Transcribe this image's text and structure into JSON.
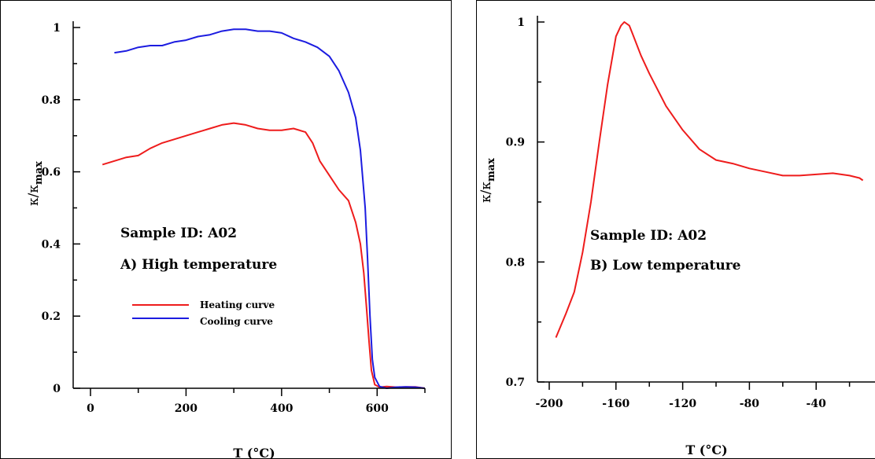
{
  "chart_data": [
    {
      "type": "line",
      "annotations": [
        "Sample ID: A02",
        "A) High temperature"
      ],
      "xlabel": "T (°C)",
      "ylabel": "κ/κmax",
      "ylabel_main": "κ/κ",
      "ylabel_sub": "max",
      "xlim": [
        0,
        700
      ],
      "ylim": [
        0,
        1
      ],
      "x_ticks": [
        0,
        200,
        400,
        600
      ],
      "x_tick_labels": [
        "0",
        "200",
        "400",
        "600"
      ],
      "y_ticks": [
        0,
        0.2,
        0.4,
        0.6,
        0.8,
        1
      ],
      "y_tick_labels": [
        "0",
        "0.2",
        "0.4",
        "0.6",
        "0.8",
        "1"
      ],
      "grid": false,
      "legend_position": "lower-left",
      "series": [
        {
          "name": "Heating curve",
          "color": "#ee1c1c",
          "x": [
            25,
            50,
            75,
            100,
            125,
            150,
            175,
            200,
            225,
            250,
            275,
            300,
            325,
            350,
            375,
            400,
            425,
            450,
            465,
            480,
            500,
            520,
            540,
            555,
            565,
            572,
            578,
            583,
            588,
            595,
            605,
            620,
            640,
            660,
            680,
            700
          ],
          "y": [
            0.62,
            0.63,
            0.64,
            0.645,
            0.665,
            0.68,
            0.69,
            0.7,
            0.71,
            0.72,
            0.73,
            0.735,
            0.73,
            0.72,
            0.715,
            0.715,
            0.72,
            0.71,
            0.68,
            0.63,
            0.59,
            0.55,
            0.52,
            0.46,
            0.4,
            0.32,
            0.22,
            0.13,
            0.05,
            0.01,
            0.003,
            0.005,
            0.003,
            0.004,
            0.004,
            0.0
          ]
        },
        {
          "name": "Cooling curve",
          "color": "#1c1ce0",
          "x": [
            50,
            75,
            100,
            125,
            150,
            175,
            200,
            225,
            250,
            275,
            300,
            325,
            350,
            375,
            400,
            425,
            450,
            475,
            500,
            520,
            540,
            555,
            565,
            575,
            580,
            585,
            590,
            595,
            605,
            620,
            640,
            660,
            680,
            700
          ],
          "y": [
            0.93,
            0.935,
            0.945,
            0.95,
            0.95,
            0.96,
            0.965,
            0.975,
            0.98,
            0.99,
            0.995,
            0.995,
            0.99,
            0.99,
            0.985,
            0.97,
            0.96,
            0.945,
            0.92,
            0.88,
            0.82,
            0.75,
            0.66,
            0.5,
            0.36,
            0.2,
            0.08,
            0.03,
            0.005,
            0.0,
            0.003,
            0.004,
            0.003,
            0.0
          ]
        }
      ]
    },
    {
      "type": "line",
      "annotations": [
        "Sample ID: A02",
        "B) Low temperature"
      ],
      "xlabel": "T (°C)",
      "ylabel": "κ/κmax",
      "ylabel_main": "κ/κ",
      "ylabel_sub": "max",
      "xlim": [
        -200,
        0
      ],
      "ylim": [
        0.7,
        1
      ],
      "x_ticks": [
        -200,
        -160,
        -120,
        -80,
        -40
      ],
      "x_tick_labels": [
        "-200",
        "-160",
        "-120",
        "-80",
        "-40"
      ],
      "y_ticks": [
        0.7,
        0.8,
        0.9,
        1
      ],
      "y_tick_labels": [
        "0.7",
        "0.8",
        "0.9",
        "1"
      ],
      "grid": false,
      "series": [
        {
          "color": "#ee1c1c",
          "x": [
            -196,
            -190,
            -185,
            -180,
            -175,
            -170,
            -165,
            -160,
            -157,
            -155,
            -152,
            -150,
            -145,
            -140,
            -130,
            -120,
            -110,
            -100,
            -90,
            -80,
            -70,
            -60,
            -50,
            -40,
            -30,
            -20,
            -14,
            -12
          ],
          "y": [
            0.737,
            0.757,
            0.775,
            0.808,
            0.85,
            0.9,
            0.948,
            0.988,
            0.997,
            1.0,
            0.997,
            0.99,
            0.972,
            0.957,
            0.93,
            0.91,
            0.894,
            0.885,
            0.882,
            0.878,
            0.875,
            0.872,
            0.872,
            0.873,
            0.874,
            0.872,
            0.87,
            0.868
          ]
        }
      ]
    }
  ]
}
